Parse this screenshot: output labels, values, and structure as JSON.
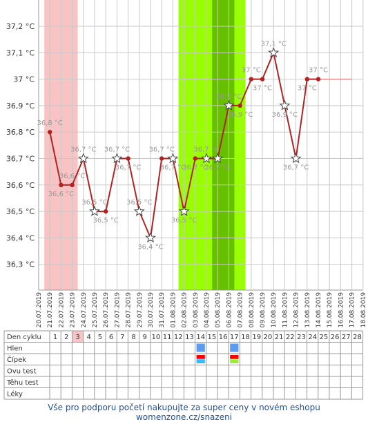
{
  "chart_data": {
    "type": "line",
    "y_ticks": [
      "37,2 °C",
      "37,1 °C",
      "37 °C",
      "36,9 °C",
      "36,8 °C",
      "36,7 °C",
      "36,6 °C",
      "36,5 °C",
      "36,4 °C",
      "36,3 °C"
    ],
    "y_tick_values": [
      37.2,
      37.1,
      37.0,
      36.9,
      36.8,
      36.7,
      36.6,
      36.5,
      36.4,
      36.3
    ],
    "ylim": [
      36.2,
      37.3
    ],
    "dates": [
      "20.07.2019",
      "21.07.2019",
      "22.07.2019",
      "23.07.2019",
      "24.07.2019",
      "25.07.2019",
      "26.07.2019",
      "27.07.2019",
      "28.07.2019",
      "29.07.2019",
      "30.07.2019",
      "31.07.2019",
      "01.08.2019",
      "02.08.2019",
      "03.08.2019",
      "04.08.2019",
      "05.08.2019",
      "06.08.2019",
      "07.08.2019",
      "08.08.2019",
      "09.08.2019",
      "10.08.2019",
      "11.08.2019",
      "12.08.2019",
      "13.08.2019",
      "14.08.2019",
      "15.08.2019",
      "16.08.2019",
      "17.08.2019",
      "18.08.2019"
    ],
    "series": [
      {
        "color": "#b22222",
        "points": [
          {
            "i": 1,
            "v": 36.8,
            "label": "36,8 °C",
            "star": false
          },
          {
            "i": 2,
            "v": 36.6,
            "label": "36,6 °C",
            "star": false
          },
          {
            "i": 3,
            "v": 36.6,
            "label": "36,6 °C",
            "star": false
          },
          {
            "i": 4,
            "v": 36.7,
            "label": "36,7 °C",
            "star": true
          },
          {
            "i": 5,
            "v": 36.5,
            "label": "36,5 °C",
            "star": true
          },
          {
            "i": 6,
            "v": 36.5,
            "label": "36,5 °C",
            "star": false
          },
          {
            "i": 7,
            "v": 36.7,
            "label": "36,7 °C",
            "star": true
          },
          {
            "i": 8,
            "v": 36.7,
            "label": "36,7 °C",
            "star": false
          },
          {
            "i": 9,
            "v": 36.5,
            "label": "36,5 °C",
            "star": true
          },
          {
            "i": 10,
            "v": 36.4,
            "label": "36,4 °C",
            "star": true
          },
          {
            "i": 11,
            "v": 36.7,
            "label": "36,7 °C",
            "star": false
          },
          {
            "i": 12,
            "v": 36.7,
            "label": "36,7 °C",
            "star": true
          },
          {
            "i": 13,
            "v": 36.5,
            "label": "36,5 °C",
            "star": true
          },
          {
            "i": 14,
            "v": 36.7,
            "label": "36,7 °C",
            "star": false
          },
          {
            "i": 15,
            "v": 36.7,
            "label": "36,7 °C",
            "star": true
          },
          {
            "i": 16,
            "v": 36.7,
            "label": "36,7 °C",
            "star": true
          },
          {
            "i": 17,
            "v": 36.9,
            "label": "36,9 °C",
            "star": true
          },
          {
            "i": 18,
            "v": 36.9,
            "label": "36,9 °C",
            "star": false
          },
          {
            "i": 19,
            "v": 37.0,
            "label": "37 °C",
            "star": false
          },
          {
            "i": 20,
            "v": 37.0,
            "label": "37 °C",
            "star": false
          },
          {
            "i": 21,
            "v": 37.1,
            "label": "37,1 °C",
            "star": true
          },
          {
            "i": 22,
            "v": 36.9,
            "label": "36,9 °C",
            "star": true
          },
          {
            "i": 23,
            "v": 36.7,
            "label": "36,7 °C",
            "star": true
          },
          {
            "i": 24,
            "v": 37.0,
            "label": "37 °C",
            "star": false
          },
          {
            "i": 25,
            "v": 37.0,
            "label": "37 °C",
            "star": false
          }
        ],
        "flat_extension_to_index": 28
      }
    ],
    "bands": [
      {
        "from": 1,
        "to": 3,
        "color": "#f9c3c3",
        "meaning": "menstruation"
      },
      {
        "from": 13,
        "to": 18,
        "color": "#99ff00",
        "meaning": "fertile window"
      },
      {
        "from": 16,
        "to": 17,
        "color": "#66c000",
        "meaning": "ovulation"
      }
    ],
    "grid": true
  },
  "table": {
    "row_labels": [
      "Den cyklu",
      "Hlen",
      "Čípek",
      "Ovu test",
      "Těhu test",
      "Léky"
    ],
    "cycle_days": [
      "1",
      "2",
      "3",
      "4",
      "5",
      "6",
      "7",
      "8",
      "9",
      "10",
      "11",
      "12",
      "13",
      "14",
      "15",
      "16",
      "17",
      "18",
      "19",
      "20",
      "21",
      "22",
      "23",
      "24",
      "25",
      "26",
      "27",
      "28"
    ],
    "highlight_day_index": 2,
    "markers": [
      {
        "row": "Hlen",
        "day": 14,
        "colors": [
          "#5b9bf0"
        ]
      },
      {
        "row": "Hlen",
        "day": 17,
        "colors": [
          "#5b9bf0"
        ]
      },
      {
        "row": "Čípek",
        "day": 14,
        "colors": [
          "#ff0000",
          "#33bbff"
        ]
      },
      {
        "row": "Čípek",
        "day": 17,
        "colors": [
          "#ff0000",
          "#99ee33"
        ]
      }
    ]
  },
  "footer": {
    "text": "Vše pro podporu početí nakupujte za super ceny v novém eshopu womenzone.cz/snazeni"
  }
}
